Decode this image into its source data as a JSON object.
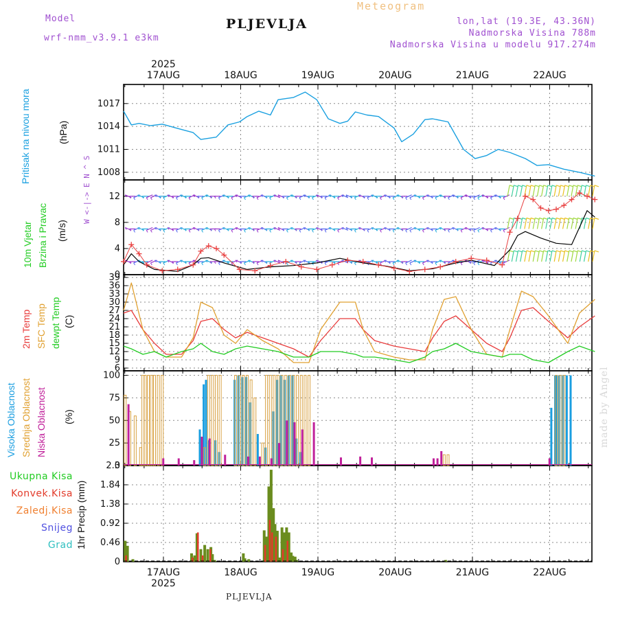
{
  "header": {
    "model_label": "Model",
    "model_name": "wrf-nmm_v3.9.1 e3km",
    "title": "PLJEVLJA",
    "product": "Meteogram",
    "lonlat": "lon,lat (19.3E, 43.36N)",
    "altitude": "Nadmorska Visina 788m",
    "model_altitude": "Nadmorska Visina u modelu 917.274m",
    "credit": "made by Angel",
    "footer": "PLJEVLJA"
  },
  "colors": {
    "pressure": "#1aa0e0",
    "temp2m": "#e83a3a",
    "sfc_temp": "#e0a030",
    "dewpt": "#22cc22",
    "cloud_high": "#1a9ee0",
    "cloud_mid": "#d8a040",
    "cloud_low": "#c0209a",
    "precip_total": "#6a8c1e",
    "precip_conv": "#e23a2a",
    "gust": "#e84040",
    "wind_mean": "#000000",
    "wind_calm": "#9933cc",
    "wind_strong": "#e8c020",
    "header_purple": "#a050d0",
    "header_orange": "#f0c080"
  },
  "chart_data": [
    {
      "id": "pressure",
      "type": "line",
      "ylabel_main": "Pritisak na nivou mora",
      "ylabel_unit": "(hPa)",
      "ylim": [
        1007,
        1019.5
      ],
      "yticks": [
        1008,
        1011,
        1014,
        1017
      ],
      "series": [
        {
          "name": "Pritisak na nivou mora",
          "x": [
            0,
            0.1,
            0.2,
            0.35,
            0.5,
            0.75,
            0.9,
            1.0,
            1.2,
            1.35,
            1.5,
            1.6,
            1.75,
            1.9,
            2.0,
            2.2,
            2.35,
            2.5,
            2.65,
            2.8,
            2.9,
            3.0,
            3.15,
            3.3,
            3.5,
            3.6,
            3.75,
            3.9,
            4.0,
            4.2,
            4.4,
            4.55,
            4.7,
            4.85,
            5.0,
            5.2,
            5.35,
            5.5,
            5.7,
            5.9,
            6.1
          ],
          "values": [
            1016.0,
            1014.2,
            1014.4,
            1014.1,
            1014.3,
            1013.6,
            1013.2,
            1012.3,
            1012.6,
            1014.2,
            1014.6,
            1015.3,
            1016.0,
            1015.5,
            1017.5,
            1017.8,
            1018.5,
            1017.5,
            1015.0,
            1014.4,
            1014.7,
            1015.9,
            1015.5,
            1015.3,
            1013.8,
            1012.0,
            1013.0,
            1014.9,
            1015.0,
            1014.6,
            1011.0,
            1009.8,
            1010.2,
            1011.0,
            1010.6,
            1009.8,
            1008.9,
            1009.0,
            1008.4,
            1008.0,
            1007.5
          ]
        }
      ]
    },
    {
      "id": "wind",
      "type": "line",
      "ylabel_main": "10m Vjetar Brzina i Pravac",
      "ylabel_unit": "(m/s)",
      "direction_key": "W <-|-> E   N ^ S",
      "ylim": [
        0,
        14.5
      ],
      "yticks": [
        0,
        4,
        8,
        12
      ],
      "series": [
        {
          "name": "Udari vjetra",
          "x": [
            0,
            0.1,
            0.2,
            0.3,
            0.5,
            0.7,
            0.9,
            1.0,
            1.1,
            1.2,
            1.3,
            1.5,
            1.7,
            1.9,
            2.1,
            2.3,
            2.5,
            2.7,
            2.9,
            3.1,
            3.3,
            3.5,
            3.7,
            3.9,
            4.1,
            4.3,
            4.5,
            4.7,
            4.9,
            5.0,
            5.1,
            5.2,
            5.3,
            5.4,
            5.5,
            5.6,
            5.7,
            5.8,
            5.9,
            6.0,
            6.1
          ],
          "values": [
            2.0,
            4.6,
            3.2,
            1.5,
            0.6,
            0.8,
            1.5,
            3.6,
            4.4,
            4.0,
            3.0,
            0.8,
            0.6,
            1.4,
            2.0,
            1.2,
            0.8,
            1.5,
            2.2,
            2.0,
            1.5,
            1.0,
            0.5,
            0.8,
            1.2,
            2.0,
            2.5,
            2.2,
            1.5,
            6.5,
            8.6,
            12.0,
            11.5,
            10.2,
            9.8,
            10.0,
            10.6,
            11.5,
            12.5,
            12.0,
            11.5
          ]
        },
        {
          "name": "Srednja brzina",
          "x": [
            0,
            0.1,
            0.2,
            0.4,
            0.7,
            0.9,
            1.0,
            1.1,
            1.3,
            1.6,
            1.9,
            2.2,
            2.5,
            2.8,
            3.1,
            3.4,
            3.7,
            4.0,
            4.3,
            4.5,
            4.8,
            5.0,
            5.1,
            5.2,
            5.4,
            5.6,
            5.8,
            6.0,
            6.1
          ],
          "values": [
            1.5,
            3.2,
            2.0,
            0.8,
            0.5,
            1.5,
            2.5,
            2.6,
            1.8,
            0.8,
            1.2,
            1.4,
            1.8,
            2.5,
            1.8,
            1.3,
            0.6,
            0.9,
            1.8,
            2.2,
            1.4,
            3.8,
            6.0,
            6.6,
            5.6,
            4.8,
            4.6,
            9.8,
            8.8
          ]
        }
      ],
      "barb_rows": [
        12,
        7,
        2
      ]
    },
    {
      "id": "temperature",
      "type": "line",
      "ylabel_lines": [
        "2m Temp",
        "SFC Temp",
        "dewpt Temp"
      ],
      "ylabel_unit": "(C)",
      "ylim": [
        5,
        40
      ],
      "yticks": [
        6,
        9,
        12,
        15,
        18,
        21,
        24,
        27,
        30,
        33,
        36,
        39
      ],
      "x": [
        0,
        0.1,
        0.25,
        0.4,
        0.55,
        0.75,
        0.9,
        1.0,
        1.15,
        1.3,
        1.45,
        1.6,
        1.8,
        2.0,
        2.2,
        2.4,
        2.55,
        2.8,
        3.0,
        3.1,
        3.25,
        3.5,
        3.7,
        3.9,
        4.0,
        4.15,
        4.3,
        4.5,
        4.7,
        4.9,
        5.0,
        5.15,
        5.3,
        5.5,
        5.75,
        5.9,
        6.1
      ],
      "series": [
        {
          "name": "2m Temp",
          "values": [
            26,
            27,
            20,
            15,
            11,
            11,
            16,
            23,
            24,
            20,
            17,
            19,
            17,
            15,
            13,
            10,
            16,
            24,
            24,
            20,
            16,
            14,
            13,
            12,
            17,
            23,
            25,
            20,
            15,
            12,
            17,
            27,
            28,
            23,
            17,
            21,
            25
          ]
        },
        {
          "name": "SFC Temp",
          "values": [
            27,
            37,
            20,
            12,
            10,
            10,
            17,
            30,
            28,
            18,
            15,
            20,
            16,
            13,
            8,
            8,
            20,
            30,
            30,
            20,
            12,
            10,
            9,
            9,
            20,
            31,
            32,
            20,
            11,
            10,
            20,
            34,
            32,
            25,
            15,
            26,
            31
          ]
        },
        {
          "name": "dewpt Temp",
          "values": [
            14,
            13,
            11,
            12,
            10,
            12,
            13,
            15,
            12,
            11,
            13,
            14,
            13,
            12,
            10,
            10,
            12,
            12,
            11,
            10,
            10,
            9,
            8,
            10,
            12,
            13,
            15,
            12,
            11,
            10,
            11,
            11,
            9,
            8,
            12,
            14,
            12
          ]
        }
      ]
    },
    {
      "id": "clouds",
      "type": "bar",
      "ylabel_lines": [
        "Visoka Oblacnost",
        "Srednja Oblacnost",
        "Niska Oblacnost"
      ],
      "ylabel_unit": "(%)",
      "ylim": [
        0,
        105
      ],
      "yticks": [
        0,
        25,
        50,
        75,
        100
      ],
      "series": [
        {
          "name": "Visoka Oblacnost",
          "x": [
            1.0,
            1.05,
            1.08,
            1.12,
            1.2,
            1.25,
            1.45,
            1.5,
            1.55,
            1.6,
            1.65,
            1.75,
            1.85,
            1.95,
            2.0,
            2.05,
            2.1,
            2.15,
            2.2,
            2.25,
            2.3,
            5.55,
            5.6,
            5.62,
            5.65,
            5.7,
            5.75,
            5.8
          ],
          "values": [
            40,
            90,
            95,
            28,
            28,
            15,
            95,
            100,
            98,
            98,
            70,
            35,
            20,
            60,
            95,
            100,
            95,
            100,
            100,
            30,
            15,
            64,
            100,
            100,
            100,
            100,
            100,
            100
          ]
        },
        {
          "name": "Srednja Oblacnost",
          "x": [
            0.02,
            0.08,
            0.15,
            0.22,
            0.25,
            0.28,
            0.32,
            0.36,
            0.4,
            0.45,
            0.5,
            1.05,
            1.1,
            1.15,
            1.2,
            1.25,
            1.45,
            1.5,
            1.55,
            1.6,
            1.65,
            1.7,
            1.8,
            1.85,
            1.9,
            1.95,
            2.0,
            2.05,
            2.1,
            2.15,
            2.2,
            2.25,
            2.3,
            2.35,
            2.4,
            4.15,
            4.2,
            5.6,
            5.65,
            5.7
          ],
          "values": [
            78,
            60,
            55,
            20,
            100,
            100,
            100,
            100,
            100,
            100,
            100,
            20,
            100,
            100,
            100,
            100,
            100,
            100,
            100,
            100,
            95,
            75,
            25,
            100,
            100,
            100,
            100,
            100,
            100,
            100,
            100,
            100,
            100,
            100,
            100,
            12,
            12,
            100,
            100,
            100
          ]
        },
        {
          "name": "Niska Oblacnost",
          "x": [
            0.05,
            0.5,
            0.7,
            0.9,
            1.0,
            1.1,
            1.3,
            1.6,
            1.75,
            1.9,
            2.0,
            2.1,
            2.2,
            2.3,
            2.45,
            2.8,
            3.05,
            3.2,
            4.0,
            4.05,
            4.1,
            5.5
          ],
          "values": [
            68,
            8,
            8,
            6,
            32,
            30,
            12,
            10,
            10,
            8,
            25,
            50,
            48,
            40,
            48,
            9,
            10,
            9,
            8,
            8,
            16,
            8
          ]
        }
      ]
    },
    {
      "id": "precipitation",
      "type": "bar",
      "legend": [
        "Ukupna Kisa",
        "Konvek.Kisa",
        "Zaledj.Kisa",
        "Snijeg",
        "Grad"
      ],
      "ylabel_unit": "1hr Precip (mm)",
      "ylim": [
        0,
        2.3
      ],
      "yticks": [
        0,
        0.46,
        0.92,
        1.38,
        1.84,
        2.3
      ],
      "ytick_labels": [
        "0",
        "0.46",
        "0.92",
        "1.38",
        "1.84",
        "2.3"
      ],
      "series": [
        {
          "name": "Ukupna Kisa",
          "x": [
            0.02,
            0.05,
            0.12,
            0.88,
            0.92,
            0.95,
            1.0,
            1.05,
            1.09,
            1.13,
            1.15,
            1.18,
            1.55,
            1.57,
            1.62,
            1.82,
            1.85,
            1.88,
            1.91,
            1.94,
            1.96,
            1.99,
            2.02,
            2.05,
            2.08,
            2.11,
            2.14,
            2.17,
            2.19,
            2.22,
            2.24,
            4.17
          ],
          "values": [
            0.5,
            0.38,
            0.06,
            0.2,
            0.15,
            0.68,
            0.3,
            0.4,
            0.3,
            0.35,
            0.18,
            0.04,
            0.2,
            0.08,
            0.06,
            0.75,
            0.6,
            1.8,
            2.2,
            1.28,
            0.9,
            0.74,
            0.1,
            0.82,
            0.7,
            0.82,
            0.7,
            0.22,
            0.14,
            0.12,
            0.04,
            0.04
          ]
        },
        {
          "name": "Konvek.Kisa",
          "x": [
            0.03,
            0.89,
            0.96,
            1.02,
            1.12,
            1.83,
            1.89,
            1.92,
            1.97,
            2.06,
            2.12
          ],
          "values": [
            0.15,
            0.1,
            0.7,
            0.15,
            0.3,
            0.4,
            1.0,
            0.7,
            0.6,
            0.3,
            0.5
          ]
        }
      ]
    }
  ],
  "time_axis": {
    "top_year": "2025",
    "bottom_year": "2025",
    "days": [
      "17AUG",
      "18AUG",
      "19AUG",
      "20AUG",
      "21AUG",
      "22AUG"
    ]
  }
}
